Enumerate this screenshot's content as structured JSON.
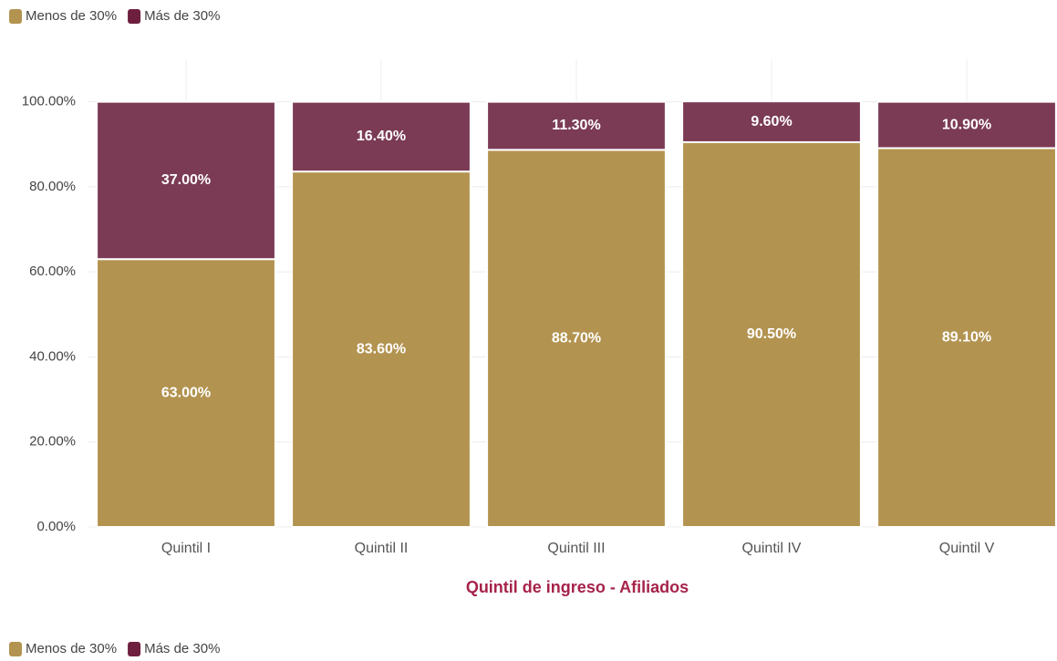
{
  "chart_data": {
    "type": "stacked_bar",
    "categories": [
      "Quintil I",
      "Quintil II",
      "Quintil III",
      "Quintil IV",
      "Quintil V"
    ],
    "series": [
      {
        "name": "Menos de 30%",
        "color": "#b39350",
        "values": [
          63.0,
          83.6,
          88.7,
          90.5,
          89.1
        ],
        "value_labels": [
          "63.00%",
          "83.60%",
          "88.70%",
          "90.50%",
          "89.10%"
        ]
      },
      {
        "name": "Más de 30%",
        "color": "#7b3b55",
        "values": [
          37.0,
          16.4,
          11.3,
          9.6,
          10.9
        ],
        "value_labels": [
          "37.00%",
          "16.40%",
          "11.30%",
          "9.60%",
          "10.90%"
        ]
      }
    ],
    "x_label": "Quintil de ingreso - Afiliados",
    "ylim": [
      0,
      110
    ],
    "yticks": [
      {
        "value": 0,
        "label": "0.00%"
      },
      {
        "value": 20,
        "label": "20.00%"
      },
      {
        "value": 40,
        "label": "40.00%"
      },
      {
        "value": 60,
        "label": "60.00%"
      },
      {
        "value": 80,
        "label": "80.00%"
      },
      {
        "value": 100,
        "label": "100.00%"
      }
    ],
    "grid": true
  }
}
